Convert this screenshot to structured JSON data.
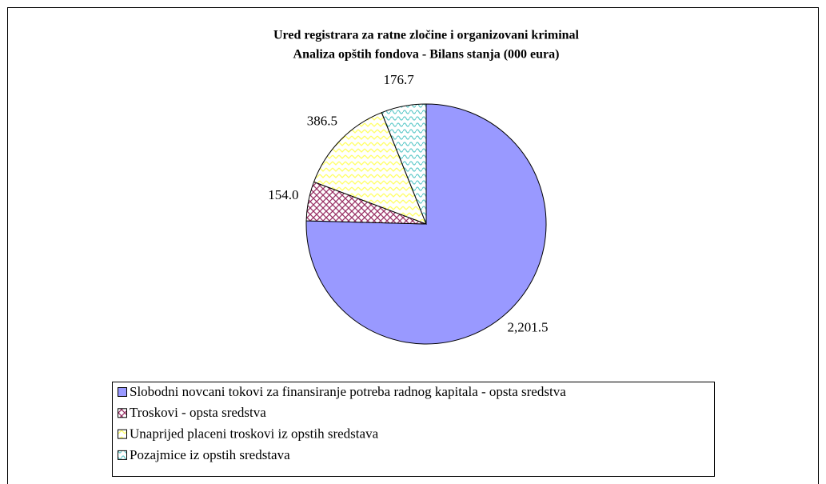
{
  "chart_data": {
    "type": "pie",
    "title": "Ured registrara za ratne zločine i organizovani kriminal",
    "subtitle": "Analiza opštih fondova - Bilans stanja (000 eura)",
    "categories": [
      "Slobodni novcani tokovi za finansiranje potreba radnog kapitala - opsta sredstva",
      "Troskovi - opsta sredstva",
      "Unaprijed placeni troskovi iz opstih sredstava",
      "Pozajmice iz opstih sredstava"
    ],
    "values": [
      2201.5,
      154.0,
      386.5,
      176.7
    ],
    "value_labels": [
      "2,201.5",
      "154.0",
      "386.5",
      "176.7"
    ],
    "colors": [
      "#9999ff",
      "#993366",
      "#ffff66",
      "#66cccc"
    ],
    "patterns": [
      "solid",
      "hatch",
      "zigzag",
      "wave"
    ],
    "legend": "bottom"
  }
}
